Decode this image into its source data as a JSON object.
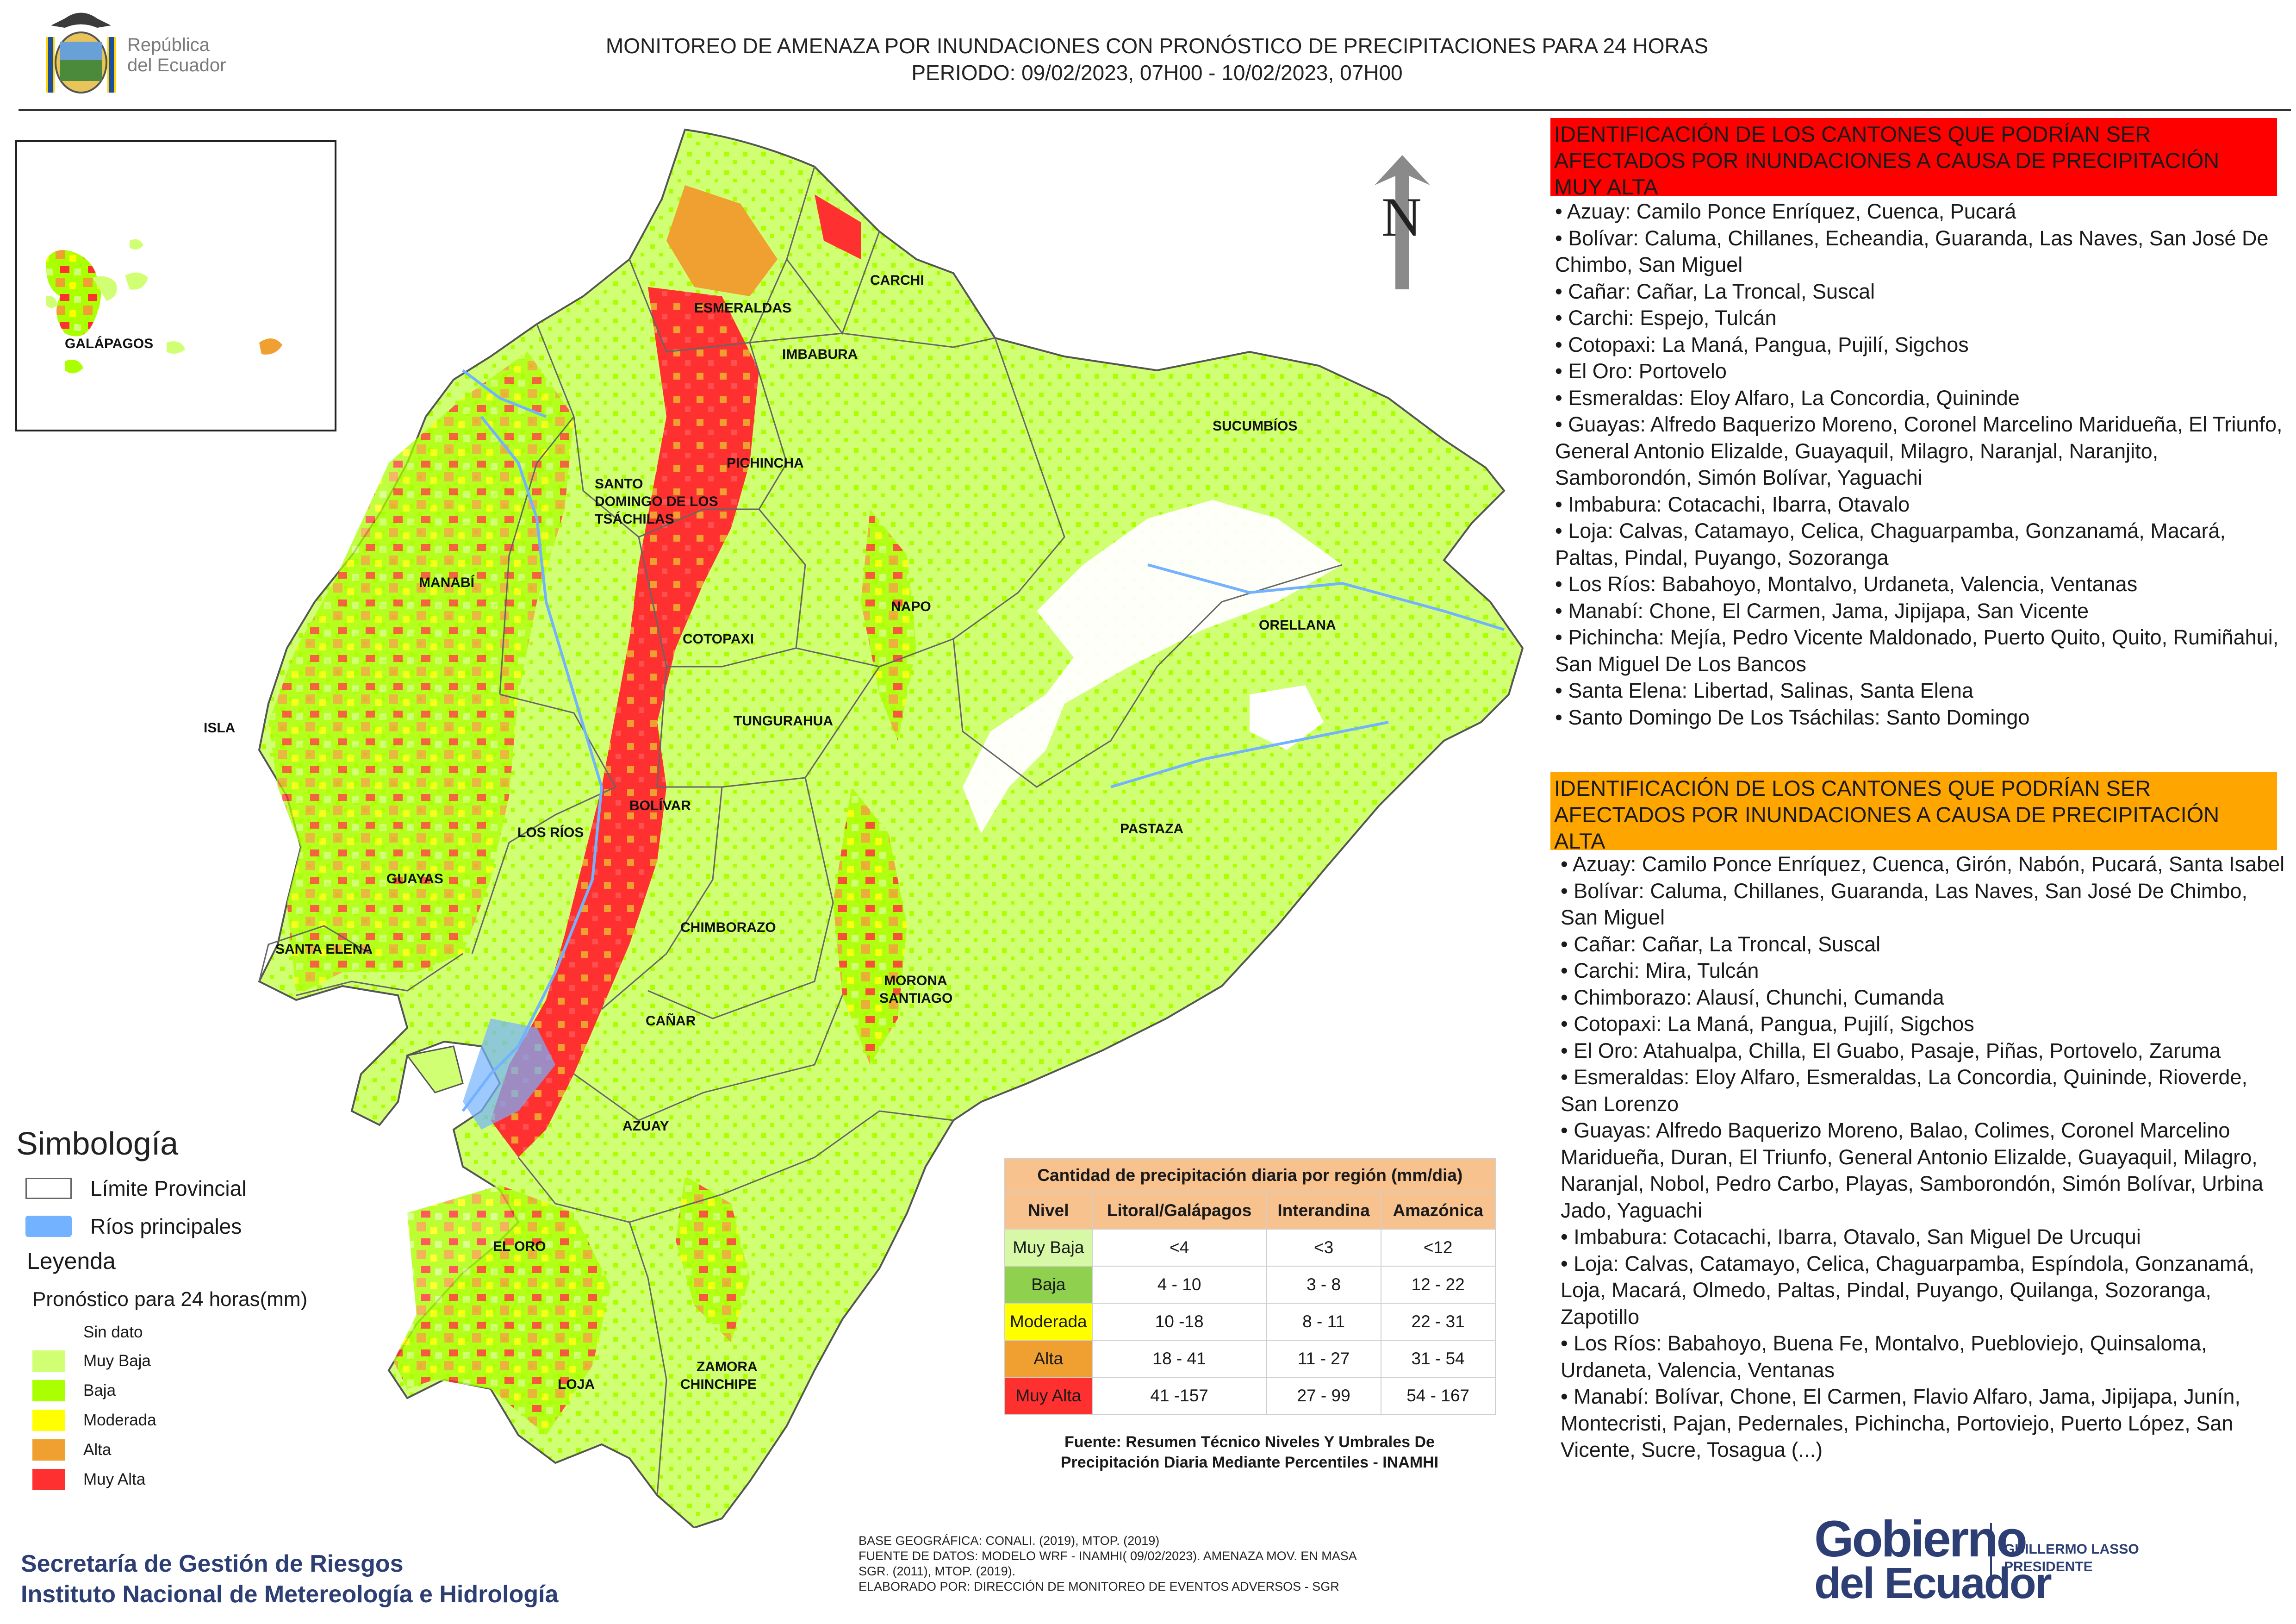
{
  "header": {
    "country_logo_text_1": "República",
    "country_logo_text_2": "del Ecuador",
    "title_line_1": "MONITOREO DE AMENAZA POR INUNDACIONES  CON PRONÓSTICO DE  PRECIPITACIONES PARA 24 HORAS",
    "title_line_2": "PERIODO: 09/02/2023, 07H00 - 10/02/2023, 07H00"
  },
  "map": {
    "north_label": "N",
    "provinces": [
      "CARCHI",
      "ESMERALDAS",
      "IMBABURA",
      "SUCUMBÍOS",
      "PICHINCHA",
      "SANTO DOMINGO DE LOS TSÁCHILAS",
      "MANABÍ",
      "NAPO",
      "ORELLANA",
      "COTOPAXI",
      "TUNGURAHUA",
      "ISLA",
      "BOLÍVAR",
      "LOS RÍOS",
      "PASTAZA",
      "GUAYAS",
      "CHIMBORAZO",
      "SANTA ELENA",
      "MORONA SANTIAGO",
      "CAÑAR",
      "AZUAY",
      "EL ORO",
      "LOJA",
      "ZAMORA CHINCHIPE",
      "GALÁPAGOS"
    ],
    "province_labels": {
      "carchi": "CARCHI",
      "esmeraldas": "ESMERALDAS",
      "imbabura": "IMBABURA",
      "sucumbios": "SUCUMBÍOS",
      "pichincha": "PICHINCHA",
      "santo_domingo_1": "SANTO",
      "santo_domingo_2": "DOMINGO DE LOS",
      "santo_domingo_3": "TSÁCHILAS",
      "manabi": "MANABÍ",
      "napo": "NAPO",
      "orellana": "ORELLANA",
      "cotopaxi": "COTOPAXI",
      "tungurahua": "TUNGURAHUA",
      "isla": "ISLA",
      "bolivar": "BOLÍVAR",
      "los_rios": "LOS RÍOS",
      "pastaza": "PASTAZA",
      "guayas": "GUAYAS",
      "chimborazo": "CHIMBORAZO",
      "santa_elena": "SANTA ELENA",
      "morona_1": "MORONA",
      "morona_2": "SANTIAGO",
      "canar": "CAÑAR",
      "azuay": "AZUAY",
      "el_oro": "EL ORO",
      "loja": "LOJA",
      "zamora_1": "ZAMORA",
      "zamora_2": "CHINCHIPE",
      "galapagos": "GALÁPAGOS"
    }
  },
  "right_panel": {
    "muy_alta_header": "IDENTIFICACIÓN DE LOS CANTONES QUE PODRÍAN SER AFECTADOS POR INUNDACIONES  A CAUSA DE PRECIPITACIÓN MUY ALTA",
    "muy_alta_items": [
      "• Azuay: Camilo Ponce Enríquez, Cuenca, Pucará",
      "• Bolívar: Caluma, Chillanes, Echeandia, Guaranda, Las Naves, San José De Chimbo, San Miguel",
      "• Cañar: Cañar, La Troncal, Suscal",
      "• Carchi: Espejo, Tulcán",
      "• Cotopaxi: La Maná, Pangua, Pujilí, Sigchos",
      "• El Oro: Portovelo",
      "• Esmeraldas: Eloy Alfaro, La Concordia, Quininde",
      "• Guayas: Alfredo Baquerizo Moreno, Coronel Marcelino Maridueña, El Triunfo, General Antonio Elizalde, Guayaquil, Milagro, Naranjal, Naranjito, Samborondón, Simón Bolívar, Yaguachi",
      "• Imbabura: Cotacachi, Ibarra, Otavalo",
      "• Loja: Calvas, Catamayo, Celica, Chaguarpamba, Gonzanamá, Macará, Paltas, Pindal, Puyango, Sozoranga",
      "• Los Ríos: Babahoyo, Montalvo, Urdaneta, Valencia, Ventanas",
      "• Manabí: Chone, El Carmen, Jama, Jipijapa, San Vicente",
      "• Pichincha: Mejía, Pedro Vicente Maldonado, Puerto Quito, Quito, Rumiñahui, San Miguel De Los Bancos",
      "• Santa Elena: Libertad, Salinas, Santa Elena",
      "• Santo Domingo De Los Tsáchilas: Santo Domingo"
    ],
    "alta_header": "IDENTIFICACIÓN DE LOS CANTONES QUE  PODRÍAN SER AFECTADOS POR INUNDACIONES  A CAUSA DE PRECIPITACIÓN ALTA",
    "alta_items": [
      "• Azuay: Camilo Ponce Enríquez, Cuenca, Girón, Nabón, Pucará, Santa Isabel",
      "• Bolívar: Caluma, Chillanes, Guaranda, Las Naves, San José De Chimbo, San Miguel",
      "• Cañar: Cañar, La Troncal, Suscal",
      "• Carchi: Mira, Tulcán",
      "• Chimborazo: Alausí, Chunchi, Cumanda",
      "• Cotopaxi: La Maná, Pangua, Pujilí, Sigchos",
      "• El Oro: Atahualpa, Chilla, El Guabo, Pasaje, Piñas, Portovelo, Zaruma",
      "• Esmeraldas: Eloy Alfaro, Esmeraldas, La Concordia, Quininde, Rioverde, San Lorenzo",
      "• Guayas: Alfredo Baquerizo Moreno, Balao, Colimes, Coronel Marcelino Maridueña, Duran, El Triunfo, General Antonio Elizalde, Guayaquil, Milagro, Naranjal, Nobol, Pedro Carbo, Playas, Samborondón, Simón Bolívar, Urbina Jado, Yaguachi",
      "• Imbabura: Cotacachi, Ibarra, Otavalo, San Miguel De Urcuqui",
      "• Loja: Calvas, Catamayo, Celica, Chaguarpamba, Espíndola, Gonzanamá, Loja, Macará, Olmedo, Paltas, Pindal, Puyango, Quilanga, Sozoranga, Zapotillo",
      "• Los Ríos: Babahoyo, Buena Fe, Montalvo, Puebloviejo, Quinsaloma, Urdaneta, Valencia, Ventanas",
      "• Manabí: Bolívar, Chone, El Carmen, Flavio Alfaro, Jama, Jipijapa, Junín, Montecristi, Pajan, Pedernales, Pichincha, Portoviejo, Puerto López, San Vicente, Sucre, Tosagua (...)"
    ]
  },
  "simbologia": {
    "title": "Simbología",
    "items": [
      {
        "label": "Límite Provincial",
        "color": "#ffffff"
      },
      {
        "label": "Ríos principales",
        "color": "#73b2ff"
      }
    ]
  },
  "leyenda": {
    "title": "Leyenda",
    "subtitle": "Pronóstico para 24 horas(mm)",
    "items": [
      {
        "label": "Sin dato",
        "color": "#ffffff"
      },
      {
        "label": " Muy Baja",
        "color": "#d1ff73"
      },
      {
        "label": "Baja",
        "color": "#aaff00"
      },
      {
        "label": "Moderada",
        "color": "#ffff00"
      },
      {
        "label": "Alta",
        "color": "#f0a030"
      },
      {
        "label": "Muy Alta",
        "color": "#ff3030"
      }
    ]
  },
  "precip_table": {
    "caption": "Cantidad de precipitación diaria por región (mm/dia)",
    "headers": [
      "Nivel",
      "Litoral/Galápagos",
      "Interandina",
      "Amazónica"
    ],
    "rows": [
      {
        "nivel": "Muy Baja",
        "color": "#d7f9a7",
        "litoral": "<4",
        "interandina": "<3",
        "amazonica": "<12"
      },
      {
        "nivel": "Baja",
        "color": "#8fd14f",
        "litoral": "4 - 10",
        "interandina": "3 - 8",
        "amazonica": "12 - 22"
      },
      {
        "nivel": "Moderada",
        "color": "#ffff00",
        "litoral": "10 -18",
        "interandina": "8 - 11",
        "amazonica": "22 - 31"
      },
      {
        "nivel": "Alta",
        "color": "#f0a030",
        "litoral": "18 - 41",
        "interandina": "11 - 27",
        "amazonica": "31 - 54"
      },
      {
        "nivel": "Muy Alta",
        "color": "#ff3030",
        "litoral": "41 -157",
        "interandina": "27 - 99",
        "amazonica": "54 - 167"
      }
    ],
    "source_1": "Fuente: Resumen Técnico Niveles Y Umbrales De",
    "source_2": "Precipitación Diaria Mediante Percentiles - INAMHI"
  },
  "footer": {
    "org_1": "Secretaría de Gestión de Riesgos",
    "org_2": "Instituto Nacional de Metereología e Hidrología",
    "base_1": "BASE GEOGRÁFICA: CONALI. (2019), MTOP. (2019)",
    "base_2": "FUENTE DE DATOS: MODELO WRF - INAMHI( 09/02/2023).  AMENAZA MOV. EN MASA",
    "base_3": "SGR. (2011), MTOP. (2019).",
    "base_4": "ELABORADO POR: DIRECCIÓN DE MONITOREO DE EVENTOS ADVERSOS - SGR",
    "gob_1": "Gobierno",
    "gob_2": "del Ecuador",
    "pres_1": "GUILLERMO LASSO",
    "pres_2": "PRESIDENTE"
  }
}
